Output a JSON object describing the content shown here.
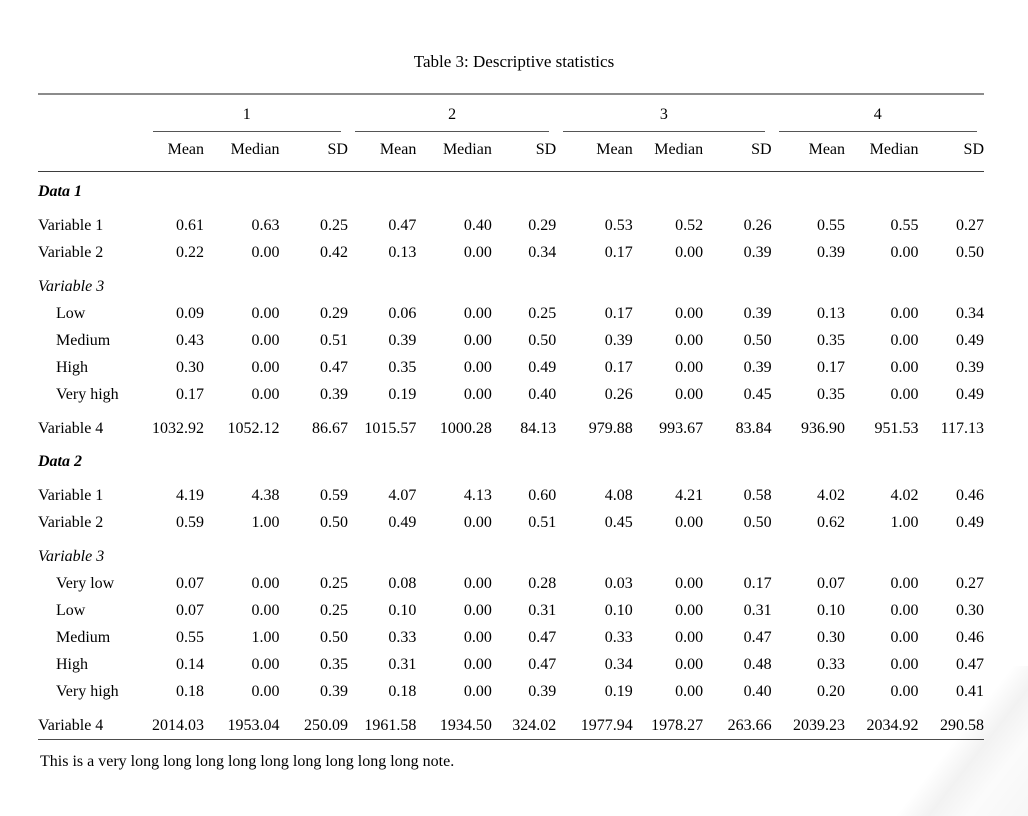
{
  "title": "Table 3: Descriptive statistics",
  "header": {
    "groups": [
      "1",
      "2",
      "3",
      "4"
    ],
    "stats": [
      "Mean",
      "Median",
      "SD"
    ]
  },
  "sections": [
    {
      "label": "Data 1",
      "rows": [
        {
          "label": "Variable 1",
          "type": "data",
          "gap": true,
          "indent": false,
          "values": [
            "0.61",
            "0.63",
            "0.25",
            "0.47",
            "0.40",
            "0.29",
            "0.53",
            "0.52",
            "0.26",
            "0.55",
            "0.55",
            "0.27"
          ]
        },
        {
          "label": "Variable 2",
          "type": "data",
          "gap": false,
          "indent": false,
          "values": [
            "0.22",
            "0.00",
            "0.42",
            "0.13",
            "0.00",
            "0.34",
            "0.17",
            "0.00",
            "0.39",
            "0.39",
            "0.00",
            "0.50"
          ]
        },
        {
          "label": "Variable 3",
          "type": "subhead",
          "gap": true,
          "indent": false,
          "values": []
        },
        {
          "label": "Low",
          "type": "data",
          "gap": false,
          "indent": true,
          "values": [
            "0.09",
            "0.00",
            "0.29",
            "0.06",
            "0.00",
            "0.25",
            "0.17",
            "0.00",
            "0.39",
            "0.13",
            "0.00",
            "0.34"
          ]
        },
        {
          "label": "Medium",
          "type": "data",
          "gap": false,
          "indent": true,
          "values": [
            "0.43",
            "0.00",
            "0.51",
            "0.39",
            "0.00",
            "0.50",
            "0.39",
            "0.00",
            "0.50",
            "0.35",
            "0.00",
            "0.49"
          ]
        },
        {
          "label": "High",
          "type": "data",
          "gap": false,
          "indent": true,
          "values": [
            "0.30",
            "0.00",
            "0.47",
            "0.35",
            "0.00",
            "0.49",
            "0.17",
            "0.00",
            "0.39",
            "0.17",
            "0.00",
            "0.39"
          ]
        },
        {
          "label": "Very high",
          "type": "data",
          "gap": false,
          "indent": true,
          "values": [
            "0.17",
            "0.00",
            "0.39",
            "0.19",
            "0.00",
            "0.40",
            "0.26",
            "0.00",
            "0.45",
            "0.35",
            "0.00",
            "0.49"
          ]
        },
        {
          "label": "Variable 4",
          "type": "data",
          "gap": true,
          "indent": false,
          "values": [
            "1032.92",
            "1052.12",
            "86.67",
            "1015.57",
            "1000.28",
            "84.13",
            "979.88",
            "993.67",
            "83.84",
            "936.90",
            "951.53",
            "117.13"
          ]
        }
      ]
    },
    {
      "label": "Data 2",
      "rows": [
        {
          "label": "Variable 1",
          "type": "data",
          "gap": true,
          "indent": false,
          "values": [
            "4.19",
            "4.38",
            "0.59",
            "4.07",
            "4.13",
            "0.60",
            "4.08",
            "4.21",
            "0.58",
            "4.02",
            "4.02",
            "0.46"
          ]
        },
        {
          "label": "Variable 2",
          "type": "data",
          "gap": false,
          "indent": false,
          "values": [
            "0.59",
            "1.00",
            "0.50",
            "0.49",
            "0.00",
            "0.51",
            "0.45",
            "0.00",
            "0.50",
            "0.62",
            "1.00",
            "0.49"
          ]
        },
        {
          "label": "Variable 3",
          "type": "subhead",
          "gap": true,
          "indent": false,
          "values": []
        },
        {
          "label": "Very low",
          "type": "data",
          "gap": false,
          "indent": true,
          "values": [
            "0.07",
            "0.00",
            "0.25",
            "0.08",
            "0.00",
            "0.28",
            "0.03",
            "0.00",
            "0.17",
            "0.07",
            "0.00",
            "0.27"
          ]
        },
        {
          "label": "Low",
          "type": "data",
          "gap": false,
          "indent": true,
          "values": [
            "0.07",
            "0.00",
            "0.25",
            "0.10",
            "0.00",
            "0.31",
            "0.10",
            "0.00",
            "0.31",
            "0.10",
            "0.00",
            "0.30"
          ]
        },
        {
          "label": "Medium",
          "type": "data",
          "gap": false,
          "indent": true,
          "values": [
            "0.55",
            "1.00",
            "0.50",
            "0.33",
            "0.00",
            "0.47",
            "0.33",
            "0.00",
            "0.47",
            "0.30",
            "0.00",
            "0.46"
          ]
        },
        {
          "label": "High",
          "type": "data",
          "gap": false,
          "indent": true,
          "values": [
            "0.14",
            "0.00",
            "0.35",
            "0.31",
            "0.00",
            "0.47",
            "0.34",
            "0.00",
            "0.48",
            "0.33",
            "0.00",
            "0.47"
          ]
        },
        {
          "label": "Very high",
          "type": "data",
          "gap": false,
          "indent": true,
          "values": [
            "0.18",
            "0.00",
            "0.39",
            "0.18",
            "0.00",
            "0.39",
            "0.19",
            "0.00",
            "0.40",
            "0.20",
            "0.00",
            "0.41"
          ]
        },
        {
          "label": "Variable 4",
          "type": "data",
          "gap": true,
          "indent": false,
          "values": [
            "2014.03",
            "1953.04",
            "250.09",
            "1961.58",
            "1934.50",
            "324.02",
            "1977.94",
            "1978.27",
            "263.66",
            "2039.23",
            "2034.92",
            "290.58"
          ]
        }
      ]
    }
  ],
  "note": "This is a very long long long long long long long long long note."
}
